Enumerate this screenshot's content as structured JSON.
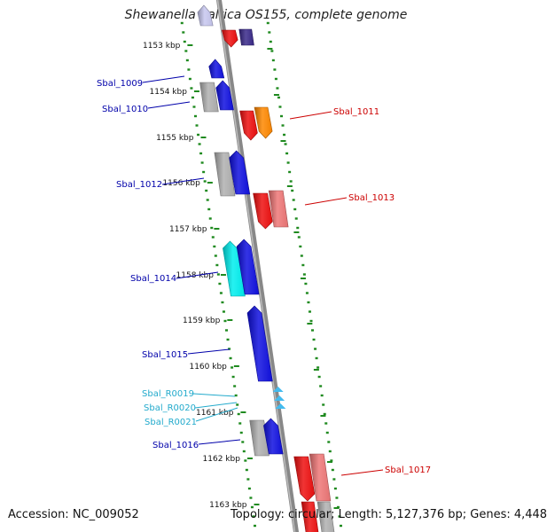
{
  "title": "Shewanella baltica OS155, complete genome",
  "footer": {
    "accession": "Accession: NC_009052",
    "topology": "Topology: circular; Length: 5,127,376 bp; Genes: 4,448"
  },
  "colors": {
    "background": "#ffffff",
    "axis": "#888888",
    "tick_green": "#1f8a1f",
    "label_blue": "#0000aa",
    "label_red": "#cc0000",
    "label_cyan": "#22aacc",
    "gene_blue": "#1010e0",
    "gene_red": "#ee1010",
    "gene_pink": "#ee7777",
    "gene_orange": "#ff8800",
    "gene_gray": "#b0b0b0",
    "gene_cyan": "#00eeee",
    "gene_navy": "#3a2a8a",
    "gene_lavender": "#c8c8f0",
    "gene_rna": "#44bbee"
  },
  "ticks": [
    {
      "label": "1153 kbp"
    },
    {
      "label": "1154 kbp"
    },
    {
      "label": "1155 kbp"
    },
    {
      "label": "1156 kbp"
    },
    {
      "label": "1157 kbp"
    },
    {
      "label": "1158 kbp"
    },
    {
      "label": "1159 kbp"
    },
    {
      "label": "1160 kbp"
    },
    {
      "label": "1161 kbp"
    },
    {
      "label": "1162 kbp"
    },
    {
      "label": "1163 kbp"
    }
  ],
  "gene_labels": [
    {
      "text": "Sbal_1009",
      "color": "label_blue"
    },
    {
      "text": "Sbal_1010",
      "color": "label_blue"
    },
    {
      "text": "Sbal_1011",
      "color": "label_red"
    },
    {
      "text": "Sbal_1012",
      "color": "label_blue"
    },
    {
      "text": "Sbal_1013",
      "color": "label_red"
    },
    {
      "text": "Sbal_1014",
      "color": "label_blue"
    },
    {
      "text": "Sbal_1015",
      "color": "label_blue"
    },
    {
      "text": "Sbal_R0019",
      "color": "label_cyan"
    },
    {
      "text": "Sbal_R0020",
      "color": "label_cyan"
    },
    {
      "text": "Sbal_R0021",
      "color": "label_cyan"
    },
    {
      "text": "Sbal_1016",
      "color": "label_blue"
    },
    {
      "text": "Sbal_1017",
      "color": "label_red"
    }
  ]
}
